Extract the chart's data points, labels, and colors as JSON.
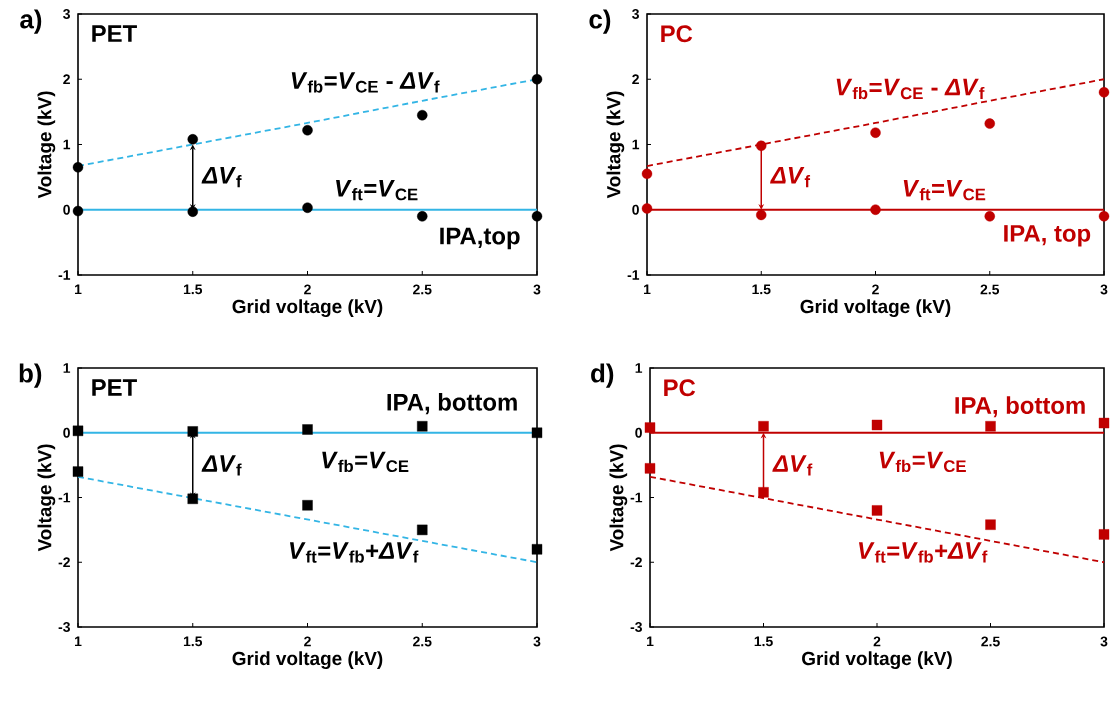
{
  "chart_data": [
    {
      "type": "scatter",
      "title": "a)",
      "xlabel": "Grid voltage (kV)",
      "ylabel": "Voltage (kV)",
      "x": [
        1,
        1.5,
        2,
        2.5,
        3
      ],
      "xlim": [
        1,
        3
      ],
      "xticks": [
        1,
        1.5,
        2,
        2.5,
        3
      ],
      "ylim": [
        -1,
        3
      ],
      "yticks": [
        -1,
        0,
        1,
        2,
        3
      ],
      "series": [
        {
          "color": "#000000",
          "marker": "circle",
          "values": [
            0.65,
            1.08,
            1.22,
            1.45,
            2.0
          ]
        },
        {
          "color": "#000000",
          "marker": "circle",
          "values": [
            -0.02,
            -0.03,
            0.03,
            -0.1,
            -0.1
          ]
        },
        {
          "type": "line",
          "color": "#33b5e5",
          "line_style": "solid",
          "values": [
            0,
            0,
            0,
            0,
            0
          ]
        },
        {
          "type": "line",
          "color": "#33b5e5",
          "line_style": "dashed",
          "values": [
            0.67,
            1.0,
            1.33,
            1.67,
            2.0
          ]
        }
      ],
      "annotations": [
        "PET",
        "*V*$_{fb}$=*V*$_{CE}$ - *ΔV*$_{f}$",
        "*ΔV*$_{f}$",
        "*V*$_{ft}$=*V*$_{CE}$",
        "IPA,top"
      ]
    },
    {
      "type": "scatter",
      "title": "c)",
      "xlabel": "Grid voltage (kV)",
      "ylabel": "Voltage (kV)",
      "x": [
        1,
        1.5,
        2,
        2.5,
        3
      ],
      "xlim": [
        1,
        3
      ],
      "xticks": [
        1,
        1.5,
        2,
        2.5,
        3
      ],
      "ylim": [
        -1,
        3
      ],
      "yticks": [
        -1,
        0,
        1,
        2,
        3
      ],
      "series": [
        {
          "color": "#c00000",
          "marker": "circle",
          "values": [
            0.55,
            0.98,
            1.18,
            1.32,
            1.8
          ]
        },
        {
          "color": "#c00000",
          "marker": "circle",
          "values": [
            0.02,
            -0.08,
            0.0,
            -0.1,
            -0.1
          ]
        },
        {
          "type": "line",
          "color": "#c00000",
          "line_style": "solid",
          "values": [
            0,
            0,
            0,
            0,
            0
          ]
        },
        {
          "type": "line",
          "color": "#c00000",
          "line_style": "dashed",
          "values": [
            0.67,
            1.0,
            1.33,
            1.67,
            2.0
          ]
        }
      ],
      "annotations": [
        "PC",
        "*V*$_{fb}$=*V*$_{CE}$ - *ΔV*$_{f}$",
        "*ΔV*$_{f}$",
        "*V*$_{ft}$=*V*$_{CE}$",
        "IPA, top"
      ]
    },
    {
      "type": "scatter",
      "title": "b)",
      "xlabel": "Grid voltage (kV)",
      "ylabel": "Voltage (kV)",
      "x": [
        1,
        1.5,
        2,
        2.5,
        3
      ],
      "xlim": [
        1,
        3
      ],
      "xticks": [
        1,
        1.5,
        2,
        2.5,
        3
      ],
      "ylim": [
        -3,
        1
      ],
      "yticks": [
        -3,
        -2,
        -1,
        0,
        1
      ],
      "series": [
        {
          "color": "#000000",
          "marker": "square",
          "values": [
            0.03,
            0.02,
            0.05,
            0.1,
            0.0
          ]
        },
        {
          "color": "#000000",
          "marker": "square",
          "values": [
            -0.6,
            -1.02,
            -1.12,
            -1.5,
            -1.8
          ]
        },
        {
          "type": "line",
          "color": "#33b5e5",
          "line_style": "solid",
          "values": [
            0,
            0,
            0,
            0,
            0
          ]
        },
        {
          "type": "line",
          "color": "#33b5e5",
          "line_style": "dashed",
          "values": [
            -0.68,
            -1.01,
            -1.34,
            -1.67,
            -2.0
          ]
        }
      ],
      "annotations": [
        "PET",
        "*V*$_{fb}$=*V*$_{CE}$",
        "*ΔV*$_{f}$",
        "*V*$_{ft}$=*V*$_{fb}$+*ΔV*$_{f}$",
        "IPA, bottom"
      ]
    },
    {
      "type": "scatter",
      "title": "d)",
      "xlabel": "Grid voltage (kV)",
      "ylabel": "Voltage (kV)",
      "x": [
        1,
        1.5,
        2,
        2.5,
        3
      ],
      "xlim": [
        1,
        3
      ],
      "xticks": [
        1,
        1.5,
        2,
        2.5,
        3
      ],
      "ylim": [
        -3,
        1
      ],
      "yticks": [
        -3,
        -2,
        -1,
        0,
        1
      ],
      "series": [
        {
          "color": "#c00000",
          "marker": "square",
          "values": [
            0.08,
            0.1,
            0.12,
            0.1,
            0.15
          ]
        },
        {
          "color": "#c00000",
          "marker": "square",
          "values": [
            -0.55,
            -0.92,
            -1.2,
            -1.42,
            -1.57
          ]
        },
        {
          "type": "line",
          "color": "#c00000",
          "line_style": "solid",
          "values": [
            0,
            0,
            0,
            0,
            0
          ]
        },
        {
          "type": "line",
          "color": "#c00000",
          "line_style": "dashed",
          "values": [
            -0.68,
            -1.01,
            -1.34,
            -1.67,
            -2.0
          ]
        }
      ],
      "annotations": [
        "PC",
        "*V*$_{fb}$=*V*$_{CE}$",
        "*ΔV*$_{f}$",
        "*V*$_{ft}$=*V*$_{fb}$+*ΔV*$_{f}$",
        "IPA, bottom"
      ]
    }
  ]
}
